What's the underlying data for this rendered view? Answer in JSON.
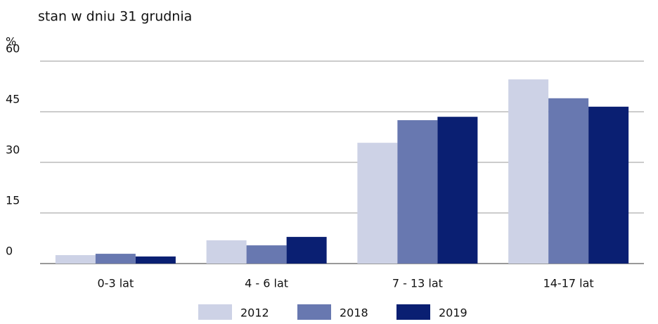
{
  "chart_data": {
    "type": "bar",
    "subtitle": "stan w dniu 31 grudnia",
    "y_label": "%",
    "categories": [
      "0-3 lat",
      "4 - 6 lat",
      "7 - 13 lat",
      "14-17 lat"
    ],
    "series": [
      {
        "name": "2012",
        "color": "#cdd2e6",
        "values": [
          2.5,
          6.9,
          35.8,
          54.6
        ]
      },
      {
        "name": "2018",
        "color": "#6878b0",
        "values": [
          2.9,
          5.4,
          42.5,
          49.0
        ]
      },
      {
        "name": "2019",
        "color": "#0a1f72",
        "values": [
          2.1,
          7.9,
          43.5,
          46.5
        ]
      }
    ],
    "ylim": [
      0,
      60
    ],
    "yticks": [
      0,
      15,
      30,
      45,
      60
    ],
    "grid": true,
    "legend": "bottom"
  }
}
